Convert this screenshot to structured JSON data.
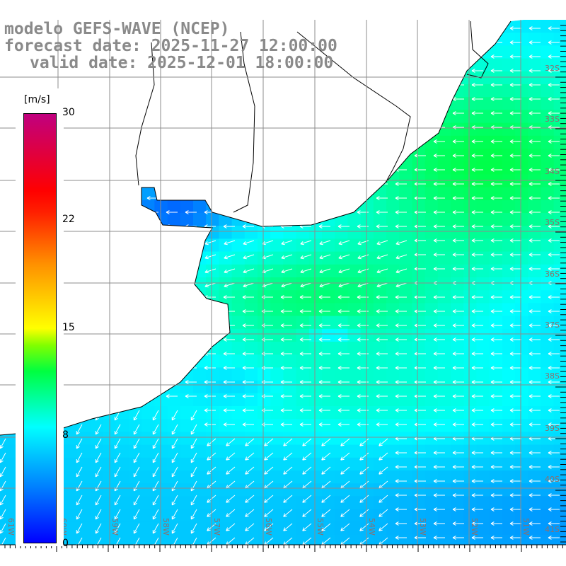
{
  "titles": {
    "model": "modelo GEFS-WAVE (NCEP)",
    "forecast": "forecast date: 2025-11-27 12:00:00",
    "valid": "valid date: 2025-12-01 18:00:00"
  },
  "colorbar": {
    "unit": "[m/s]",
    "ticks": [
      "30",
      "22",
      "15",
      "8",
      "0"
    ],
    "range": [
      0,
      30
    ]
  },
  "latitude_labels": [
    "32S",
    "33S",
    "34S",
    "35S",
    "36S",
    "37S",
    "38S",
    "39S",
    "40S",
    "41S"
  ],
  "longitude_labels": [
    "61W",
    "60W",
    "59W",
    "58W",
    "57W",
    "56W",
    "55W",
    "54W",
    "53W",
    "52W",
    "51W"
  ],
  "colors": {
    "title": "#8a8a8a",
    "grid": "#8c8c8c",
    "coast": "#000000",
    "arrow": "#ffffff",
    "land": "#ffffff"
  }
}
